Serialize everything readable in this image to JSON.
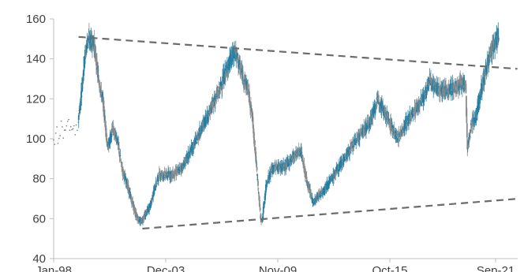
{
  "chart_data": {
    "type": "candlestick",
    "title": "",
    "xlabel": "",
    "ylabel": "",
    "x_ticks": [
      "Jan-98",
      "Dec-03",
      "Nov-09",
      "Oct-15",
      "Sep-21"
    ],
    "x_range": [
      "1998-01",
      "2022-12"
    ],
    "ylim": [
      40,
      160
    ],
    "y_ticks": [
      40,
      60,
      80,
      100,
      120,
      140,
      160
    ],
    "grid": false,
    "legend": "none",
    "colors": {
      "up": "#1f7fa6",
      "down": "#8c8c8c",
      "trendline": "#6b6b6b",
      "axis": "#bfbfbf"
    },
    "series": [
      {
        "values_monthly_close_approx": [
          [
            "1998-01",
            100
          ],
          [
            "1998-06",
            104
          ],
          [
            "1998-12",
            108
          ],
          [
            "1999-03",
            104
          ],
          [
            "1999-06",
            115
          ],
          [
            "1999-09",
            140
          ],
          [
            "1999-11",
            150
          ],
          [
            "2000-03",
            148
          ],
          [
            "2000-06",
            130
          ],
          [
            "2000-09",
            118
          ],
          [
            "2000-12",
            95
          ],
          [
            "2001-03",
            105
          ],
          [
            "2001-06",
            100
          ],
          [
            "2001-09",
            85
          ],
          [
            "2001-12",
            78
          ],
          [
            "2002-03",
            70
          ],
          [
            "2002-06",
            62
          ],
          [
            "2002-09",
            58
          ],
          [
            "2002-12",
            62
          ],
          [
            "2003-03",
            66
          ],
          [
            "2003-06",
            75
          ],
          [
            "2003-09",
            82
          ],
          [
            "2003-12",
            82
          ],
          [
            "2004-06",
            82
          ],
          [
            "2004-12",
            86
          ],
          [
            "2005-06",
            95
          ],
          [
            "2005-12",
            105
          ],
          [
            "2006-06",
            115
          ],
          [
            "2006-12",
            125
          ],
          [
            "2007-06",
            138
          ],
          [
            "2007-10",
            144
          ],
          [
            "2008-01",
            135
          ],
          [
            "2008-06",
            125
          ],
          [
            "2008-09",
            110
          ],
          [
            "2008-12",
            82
          ],
          [
            "2009-02",
            62
          ],
          [
            "2009-03",
            58
          ],
          [
            "2009-06",
            78
          ],
          [
            "2009-09",
            84
          ],
          [
            "2009-12",
            86
          ],
          [
            "2010-06",
            86
          ],
          [
            "2010-12",
            92
          ],
          [
            "2011-04",
            94
          ],
          [
            "2011-08",
            78
          ],
          [
            "2011-12",
            68
          ],
          [
            "2012-06",
            74
          ],
          [
            "2012-12",
            80
          ],
          [
            "2013-06",
            88
          ],
          [
            "2013-12",
            95
          ],
          [
            "2014-06",
            102
          ],
          [
            "2014-12",
            108
          ],
          [
            "2015-06",
            120
          ],
          [
            "2015-12",
            110
          ],
          [
            "2016-06",
            100
          ],
          [
            "2016-12",
            108
          ],
          [
            "2017-06",
            115
          ],
          [
            "2017-12",
            122
          ],
          [
            "2018-03",
            130
          ],
          [
            "2018-06",
            126
          ],
          [
            "2018-12",
            124
          ],
          [
            "2019-06",
            125
          ],
          [
            "2019-12",
            128
          ],
          [
            "2020-02",
            127
          ],
          [
            "2020-03",
            95
          ],
          [
            "2020-06",
            108
          ],
          [
            "2020-09",
            112
          ],
          [
            "2020-12",
            125
          ],
          [
            "2021-03",
            135
          ],
          [
            "2021-06",
            143
          ],
          [
            "2021-09",
            148
          ],
          [
            "2021-11",
            152
          ]
        ]
      }
    ],
    "trendlines": [
      {
        "points": [
          [
            "1999-05",
            151
          ],
          [
            "2022-11",
            135
          ]
        ]
      },
      {
        "points": [
          [
            "2002-10",
            55
          ],
          [
            "2022-12",
            70
          ]
        ]
      }
    ]
  }
}
